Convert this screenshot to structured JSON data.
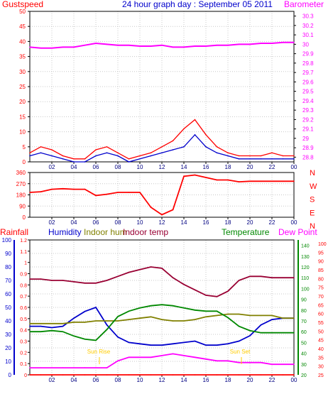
{
  "colors": {
    "red": "#ff0000",
    "magenta": "#ff00ff",
    "blue": "#0000cc",
    "dark_red": "#990033",
    "green": "#008800",
    "olive": "#808000",
    "yellow": "#ffcc00",
    "axis": "#000000",
    "grid": "#c8c8c8"
  },
  "chart_data": [
    {
      "type": "line",
      "panel": "wind-barometer",
      "title": "24 hour graph day : September 05 2011",
      "left_label": "Gustspeed",
      "right_label": "Barometer",
      "x_ticks": [
        "02",
        "04",
        "06",
        "08",
        "10",
        "12",
        "14",
        "16",
        "18",
        "20",
        "22",
        "00"
      ],
      "y_left_ticks": [
        0,
        5,
        10,
        15,
        20,
        25,
        30,
        35,
        40,
        45,
        50
      ],
      "ylim_left": [
        0,
        50
      ],
      "y_right_ticks": [
        28.8,
        28.9,
        29.0,
        29.1,
        29.2,
        29.3,
        29.4,
        29.5,
        29.6,
        29.7,
        29.8,
        29.9,
        30.0,
        30.1,
        30.2,
        30.3
      ],
      "y_right_tick_labels": [
        "28.8",
        "28.9",
        "29",
        "29.1",
        "29.2",
        "29.3",
        "29.4",
        "29.5",
        "29.6",
        "29.7",
        "29.8",
        "29.9",
        "30",
        "30.1",
        "30.2",
        "30.3"
      ],
      "ylim_right": [
        28.75,
        30.35
      ],
      "x": [
        0,
        1,
        2,
        3,
        4,
        5,
        6,
        7,
        8,
        9,
        10,
        11,
        12,
        13,
        14,
        15,
        16,
        17,
        18,
        19,
        20,
        21,
        22,
        23,
        24
      ],
      "series": [
        {
          "name": "Gustspeed",
          "axis": "left",
          "values": [
            3,
            5,
            4,
            2,
            1,
            1,
            4,
            5,
            3,
            1,
            2,
            3,
            5,
            7,
            11,
            14,
            9,
            5,
            3,
            2,
            2,
            2,
            3,
            2,
            2
          ]
        },
        {
          "name": "",
          "axis": "left",
          "values": [
            2,
            3,
            2,
            1,
            0,
            0,
            2,
            3,
            2,
            0,
            1,
            2,
            3,
            4,
            5,
            9,
            5,
            3,
            2,
            1,
            1,
            1,
            1,
            1,
            1
          ]
        },
        {
          "name": "Barometer",
          "axis": "right",
          "values": [
            29.97,
            29.96,
            29.96,
            29.97,
            29.97,
            29.99,
            30.01,
            30.0,
            29.99,
            29.99,
            29.98,
            29.98,
            29.99,
            29.97,
            29.97,
            29.98,
            29.98,
            29.99,
            29.99,
            30.0,
            30.0,
            30.01,
            30.01,
            30.02,
            30.02
          ]
        }
      ]
    },
    {
      "type": "line",
      "panel": "wind-direction",
      "y_left_ticks": [
        0,
        90,
        180,
        270,
        360
      ],
      "ylim_left": [
        0,
        360
      ],
      "y_right_labels": [
        "N",
        "W",
        "S",
        "E",
        "N"
      ],
      "x_ticks": [
        "02",
        "04",
        "06",
        "08",
        "10",
        "12",
        "14",
        "16",
        "18",
        "20",
        "22",
        "00"
      ],
      "x": [
        0,
        1,
        2,
        3,
        4,
        5,
        6,
        7,
        8,
        9,
        10,
        11,
        12,
        13,
        14,
        15,
        16,
        17,
        18,
        19,
        20,
        21,
        22,
        23,
        24
      ],
      "series": [
        {
          "name": "",
          "values": [
            200,
            205,
            225,
            230,
            225,
            225,
            175,
            185,
            200,
            200,
            200,
            80,
            20,
            60,
            330,
            340,
            320,
            300,
            300,
            285,
            290,
            290,
            290,
            290,
            290
          ]
        }
      ]
    },
    {
      "type": "line",
      "panel": "temp-humidity-rain",
      "labels": [
        "Rainfall",
        "Humidity",
        "Indoor hum",
        "Indoor temp",
        "Temperature",
        "Dew Point"
      ],
      "annotations": [
        "Sun Rise",
        "Sun Set"
      ],
      "x_ticks": [
        "02",
        "04",
        "06",
        "08",
        "10",
        "12",
        "14",
        "16",
        "18",
        "20",
        "22",
        "00"
      ],
      "y_rain_ticks": [
        0,
        0.1,
        0.2,
        0.3,
        0.4,
        0.5,
        0.6,
        0.7,
        0.8,
        0.9,
        1,
        1.1,
        1.2
      ],
      "y_rain_tick_labels": [
        "0",
        "0.1",
        "0.2",
        "0.3",
        "0.4",
        "0.5",
        "0.6",
        "0.7",
        "0.8",
        "0.9",
        "1",
        "1.1",
        "1.2"
      ],
      "y_hum_ticks": [
        0,
        10,
        20,
        30,
        40,
        50,
        60,
        70,
        80,
        90,
        100
      ],
      "y_temp_ticks": [
        20,
        30,
        40,
        50,
        60,
        70,
        80,
        90,
        100,
        110,
        120,
        130,
        140
      ],
      "y_dew_ticks": [
        25,
        30,
        35,
        40,
        45,
        50,
        55,
        60,
        65,
        70,
        75,
        80,
        85,
        90,
        95,
        100
      ],
      "x": [
        0,
        1,
        2,
        3,
        4,
        5,
        6,
        7,
        8,
        9,
        10,
        11,
        12,
        13,
        14,
        15,
        16,
        17,
        18,
        19,
        20,
        21,
        22,
        23,
        24
      ],
      "series": [
        {
          "name": "Rainfall",
          "axis": "rain",
          "values": [
            0,
            0,
            0,
            0,
            0,
            0,
            0,
            0,
            0,
            0,
            0,
            0,
            0,
            0,
            0,
            0,
            0,
            0,
            0,
            0,
            0,
            0,
            0,
            0,
            0
          ]
        },
        {
          "name": "Humidity",
          "axis": "hum",
          "values": [
            36,
            36,
            35,
            36,
            42,
            47,
            50,
            37,
            28,
            24,
            23,
            22,
            22,
            23,
            24,
            25,
            22,
            22,
            23,
            25,
            29,
            37,
            41,
            42,
            42
          ]
        },
        {
          "name": "Indoor hum",
          "axis": "hum",
          "values": [
            38,
            38,
            38,
            38,
            39,
            39,
            40,
            40,
            40,
            41,
            42,
            43,
            41,
            40,
            40,
            41,
            43,
            44,
            45,
            45,
            44,
            44,
            44,
            42,
            42
          ]
        },
        {
          "name": "Indoor temp",
          "axis": "hum",
          "values": [
            71,
            71,
            70,
            70,
            69,
            68,
            68,
            70,
            73,
            76,
            78,
            80,
            79,
            72,
            67,
            63,
            59,
            58,
            62,
            70,
            73,
            73,
            72,
            72,
            72
          ]
        },
        {
          "name": "Temperature",
          "axis": "temp",
          "values": [
            60,
            60,
            61,
            60,
            56,
            53,
            52,
            62,
            74,
            79,
            82,
            84,
            85,
            84,
            82,
            80,
            79,
            79,
            73,
            65,
            61,
            59,
            59,
            59,
            59
          ]
        },
        {
          "name": "Dew Point",
          "axis": "dew",
          "values": [
            29,
            29,
            29,
            29,
            29,
            29,
            29,
            29,
            33,
            35,
            35,
            35,
            36,
            37,
            36,
            35,
            34,
            33,
            33,
            32,
            32,
            32,
            31,
            31,
            31
          ]
        }
      ]
    }
  ]
}
